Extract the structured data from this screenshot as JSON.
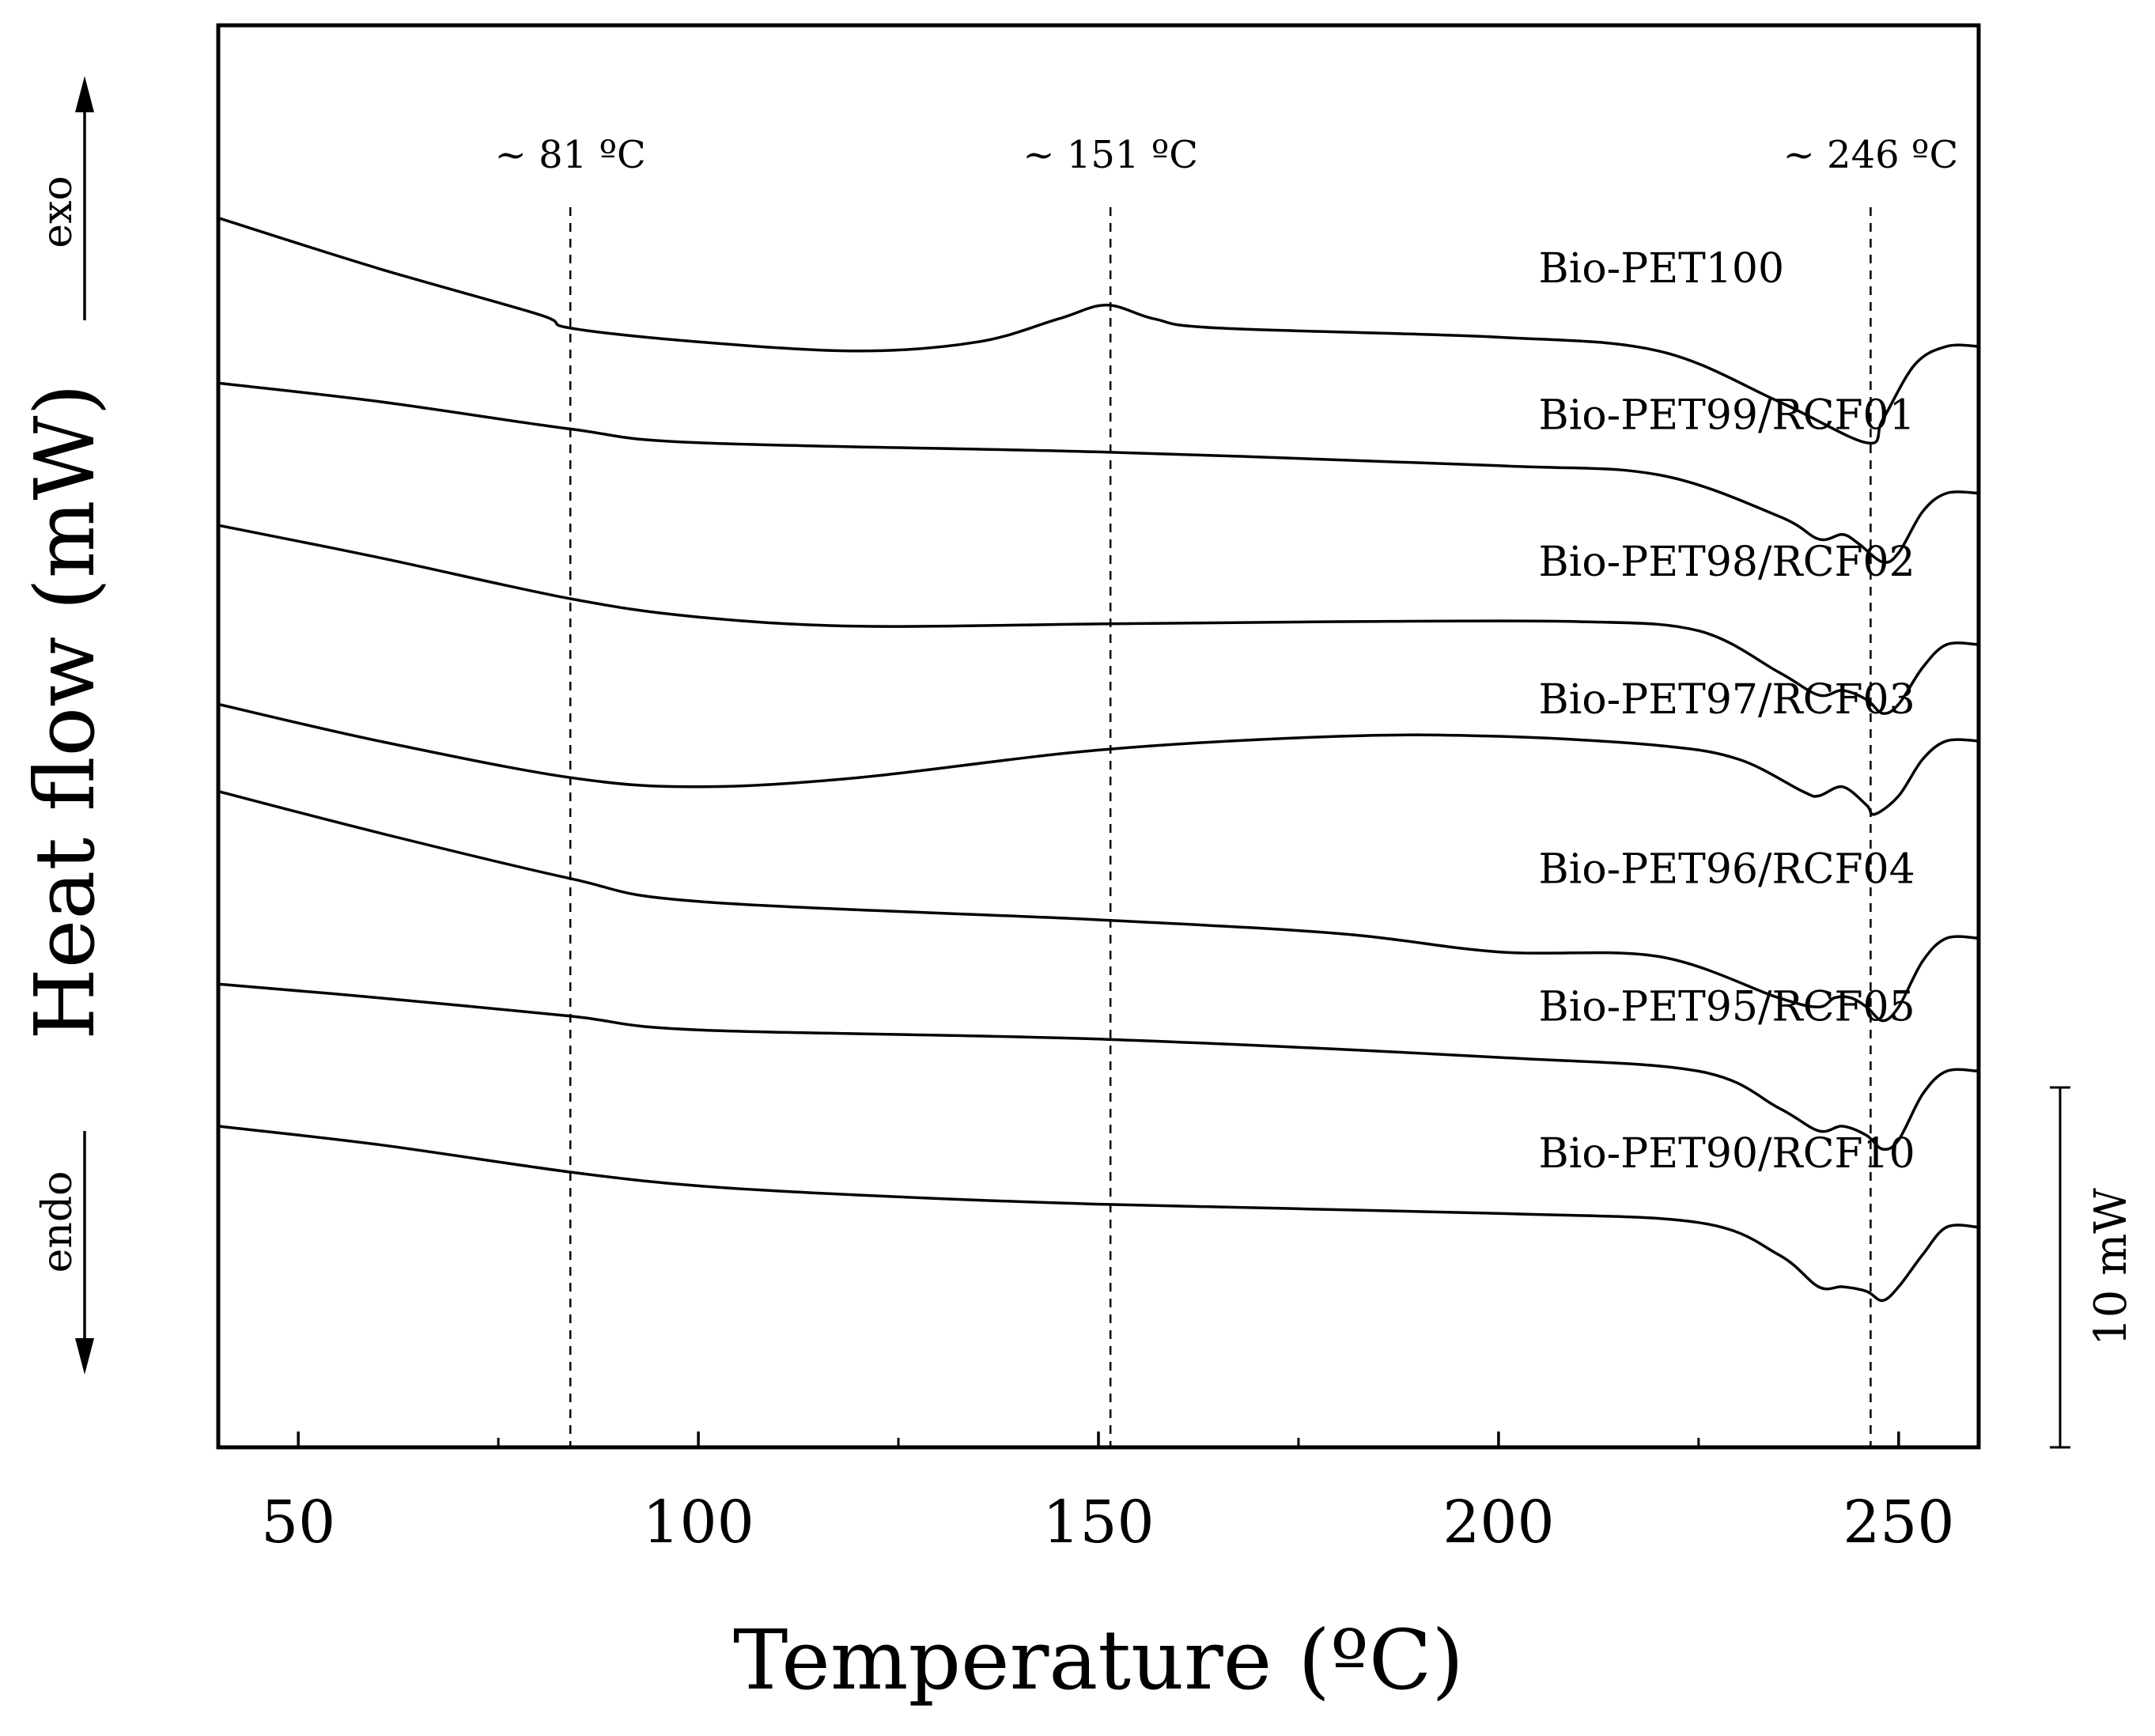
{
  "chart_data": {
    "type": "line",
    "title": "",
    "xlabel": "Temperature (ºC)",
    "ylabel": "Heat flow (mW)",
    "xlim": [
      40,
      260
    ],
    "x_ticks": [
      50,
      100,
      150,
      200,
      250
    ],
    "x_tick_labels": [
      "50",
      "100",
      "150",
      "200",
      "250"
    ],
    "y_units": "mW (offset traces, arbitrary baseline)",
    "ylim": [
      0,
      31
    ],
    "direction_labels": {
      "exo": "exo",
      "endo": "endo"
    },
    "scale_bar": {
      "label": "10 mW",
      "value_mW": 10
    },
    "markers": [
      {
        "x": 84,
        "label": "~ 81 ºC"
      },
      {
        "x": 151.5,
        "label": "~ 151 ºC"
      },
      {
        "x": 246.5,
        "label": "~ 246 ºC"
      }
    ],
    "series": [
      {
        "name": "Bio-PET100",
        "label_x": 205,
        "label_y": 25.4,
        "points": [
          [
            40,
            26.8
          ],
          [
            60,
            25.7
          ],
          [
            80,
            24.7
          ],
          [
            84,
            24.4
          ],
          [
            100,
            24.1
          ],
          [
            120,
            23.9
          ],
          [
            135,
            24.1
          ],
          [
            145,
            24.6
          ],
          [
            151,
            24.9
          ],
          [
            157,
            24.6
          ],
          [
            165,
            24.4
          ],
          [
            200,
            24.2
          ],
          [
            220,
            23.9
          ],
          [
            235,
            22.8
          ],
          [
            246,
            21.9
          ],
          [
            248,
            22.4
          ],
          [
            252,
            23.6
          ],
          [
            256,
            24
          ],
          [
            260,
            24
          ]
        ]
      },
      {
        "name": "Bio-PET99/RCF01",
        "label_x": 205,
        "label_y": 22.2,
        "points": [
          [
            40,
            23.2
          ],
          [
            60,
            22.8
          ],
          [
            84,
            22.2
          ],
          [
            100,
            21.9
          ],
          [
            150,
            21.7
          ],
          [
            200,
            21.4
          ],
          [
            220,
            21.2
          ],
          [
            235,
            20.3
          ],
          [
            240,
            19.8
          ],
          [
            243,
            19.9
          ],
          [
            245,
            19.7
          ],
          [
            248,
            19.3
          ],
          [
            250,
            19.5
          ],
          [
            253,
            20.4
          ],
          [
            256,
            20.8
          ],
          [
            260,
            20.8
          ]
        ]
      },
      {
        "name": "Bio-PET98/RCF02",
        "label_x": 205,
        "label_y": 19.0,
        "points": [
          [
            40,
            20.1
          ],
          [
            60,
            19.4
          ],
          [
            84,
            18.5
          ],
          [
            100,
            18.1
          ],
          [
            120,
            17.9
          ],
          [
            150,
            17.95
          ],
          [
            180,
            18
          ],
          [
            210,
            18
          ],
          [
            225,
            17.8
          ],
          [
            235,
            16.9
          ],
          [
            240,
            16.4
          ],
          [
            243,
            16.5
          ],
          [
            246,
            16.3
          ],
          [
            248,
            16
          ],
          [
            250,
            16.2
          ],
          [
            253,
            17
          ],
          [
            256,
            17.5
          ],
          [
            260,
            17.5
          ]
        ]
      },
      {
        "name": "Bio-PET97/RCF03",
        "label_x": 205,
        "label_y": 16.0,
        "points": [
          [
            40,
            16.2
          ],
          [
            60,
            15.4
          ],
          [
            84,
            14.6
          ],
          [
            100,
            14.4
          ],
          [
            120,
            14.6
          ],
          [
            150,
            15.2
          ],
          [
            180,
            15.5
          ],
          [
            200,
            15.5
          ],
          [
            220,
            15.3
          ],
          [
            230,
            15
          ],
          [
            238,
            14.3
          ],
          [
            240,
            14.2
          ],
          [
            243,
            14.4
          ],
          [
            246,
            14
          ],
          [
            247,
            13.8
          ],
          [
            250,
            14.2
          ],
          [
            253,
            15
          ],
          [
            256,
            15.4
          ],
          [
            260,
            15.4
          ]
        ]
      },
      {
        "name": "Bio-PET96/RCF04",
        "label_x": 205,
        "label_y": 12.3,
        "points": [
          [
            40,
            14.3
          ],
          [
            60,
            13.4
          ],
          [
            84,
            12.4
          ],
          [
            100,
            11.9
          ],
          [
            150,
            11.5
          ],
          [
            180,
            11.2
          ],
          [
            200,
            10.8
          ],
          [
            220,
            10.7
          ],
          [
            235,
            9.8
          ],
          [
            240,
            9.6
          ],
          [
            242,
            9.8
          ],
          [
            244,
            9.8
          ],
          [
            246,
            9.6
          ],
          [
            248,
            9.3
          ],
          [
            250,
            9.6
          ],
          [
            253,
            10.6
          ],
          [
            256,
            11.1
          ],
          [
            260,
            11.1
          ]
        ]
      },
      {
        "name": "Bio-PET95/RCF05",
        "label_x": 205,
        "label_y": 9.3,
        "points": [
          [
            40,
            10.1
          ],
          [
            60,
            9.8
          ],
          [
            84,
            9.4
          ],
          [
            100,
            9.1
          ],
          [
            150,
            8.9
          ],
          [
            200,
            8.5
          ],
          [
            225,
            8.2
          ],
          [
            235,
            7.4
          ],
          [
            240,
            6.9
          ],
          [
            243,
            7
          ],
          [
            246,
            6.8
          ],
          [
            248,
            6.5
          ],
          [
            250,
            6.7
          ],
          [
            253,
            7.7
          ],
          [
            256,
            8.2
          ],
          [
            260,
            8.2
          ]
        ]
      },
      {
        "name": "Bio-PET90/RCF10",
        "label_x": 205,
        "label_y": 6.1,
        "points": [
          [
            40,
            7
          ],
          [
            60,
            6.6
          ],
          [
            84,
            6
          ],
          [
            100,
            5.7
          ],
          [
            120,
            5.5
          ],
          [
            150,
            5.3
          ],
          [
            200,
            5.1
          ],
          [
            225,
            4.9
          ],
          [
            235,
            4.2
          ],
          [
            240,
            3.5
          ],
          [
            243,
            3.5
          ],
          [
            246,
            3.4
          ],
          [
            248,
            3.2
          ],
          [
            250,
            3.5
          ],
          [
            253,
            4.2
          ],
          [
            256,
            4.8
          ],
          [
            260,
            4.8
          ]
        ]
      }
    ]
  }
}
